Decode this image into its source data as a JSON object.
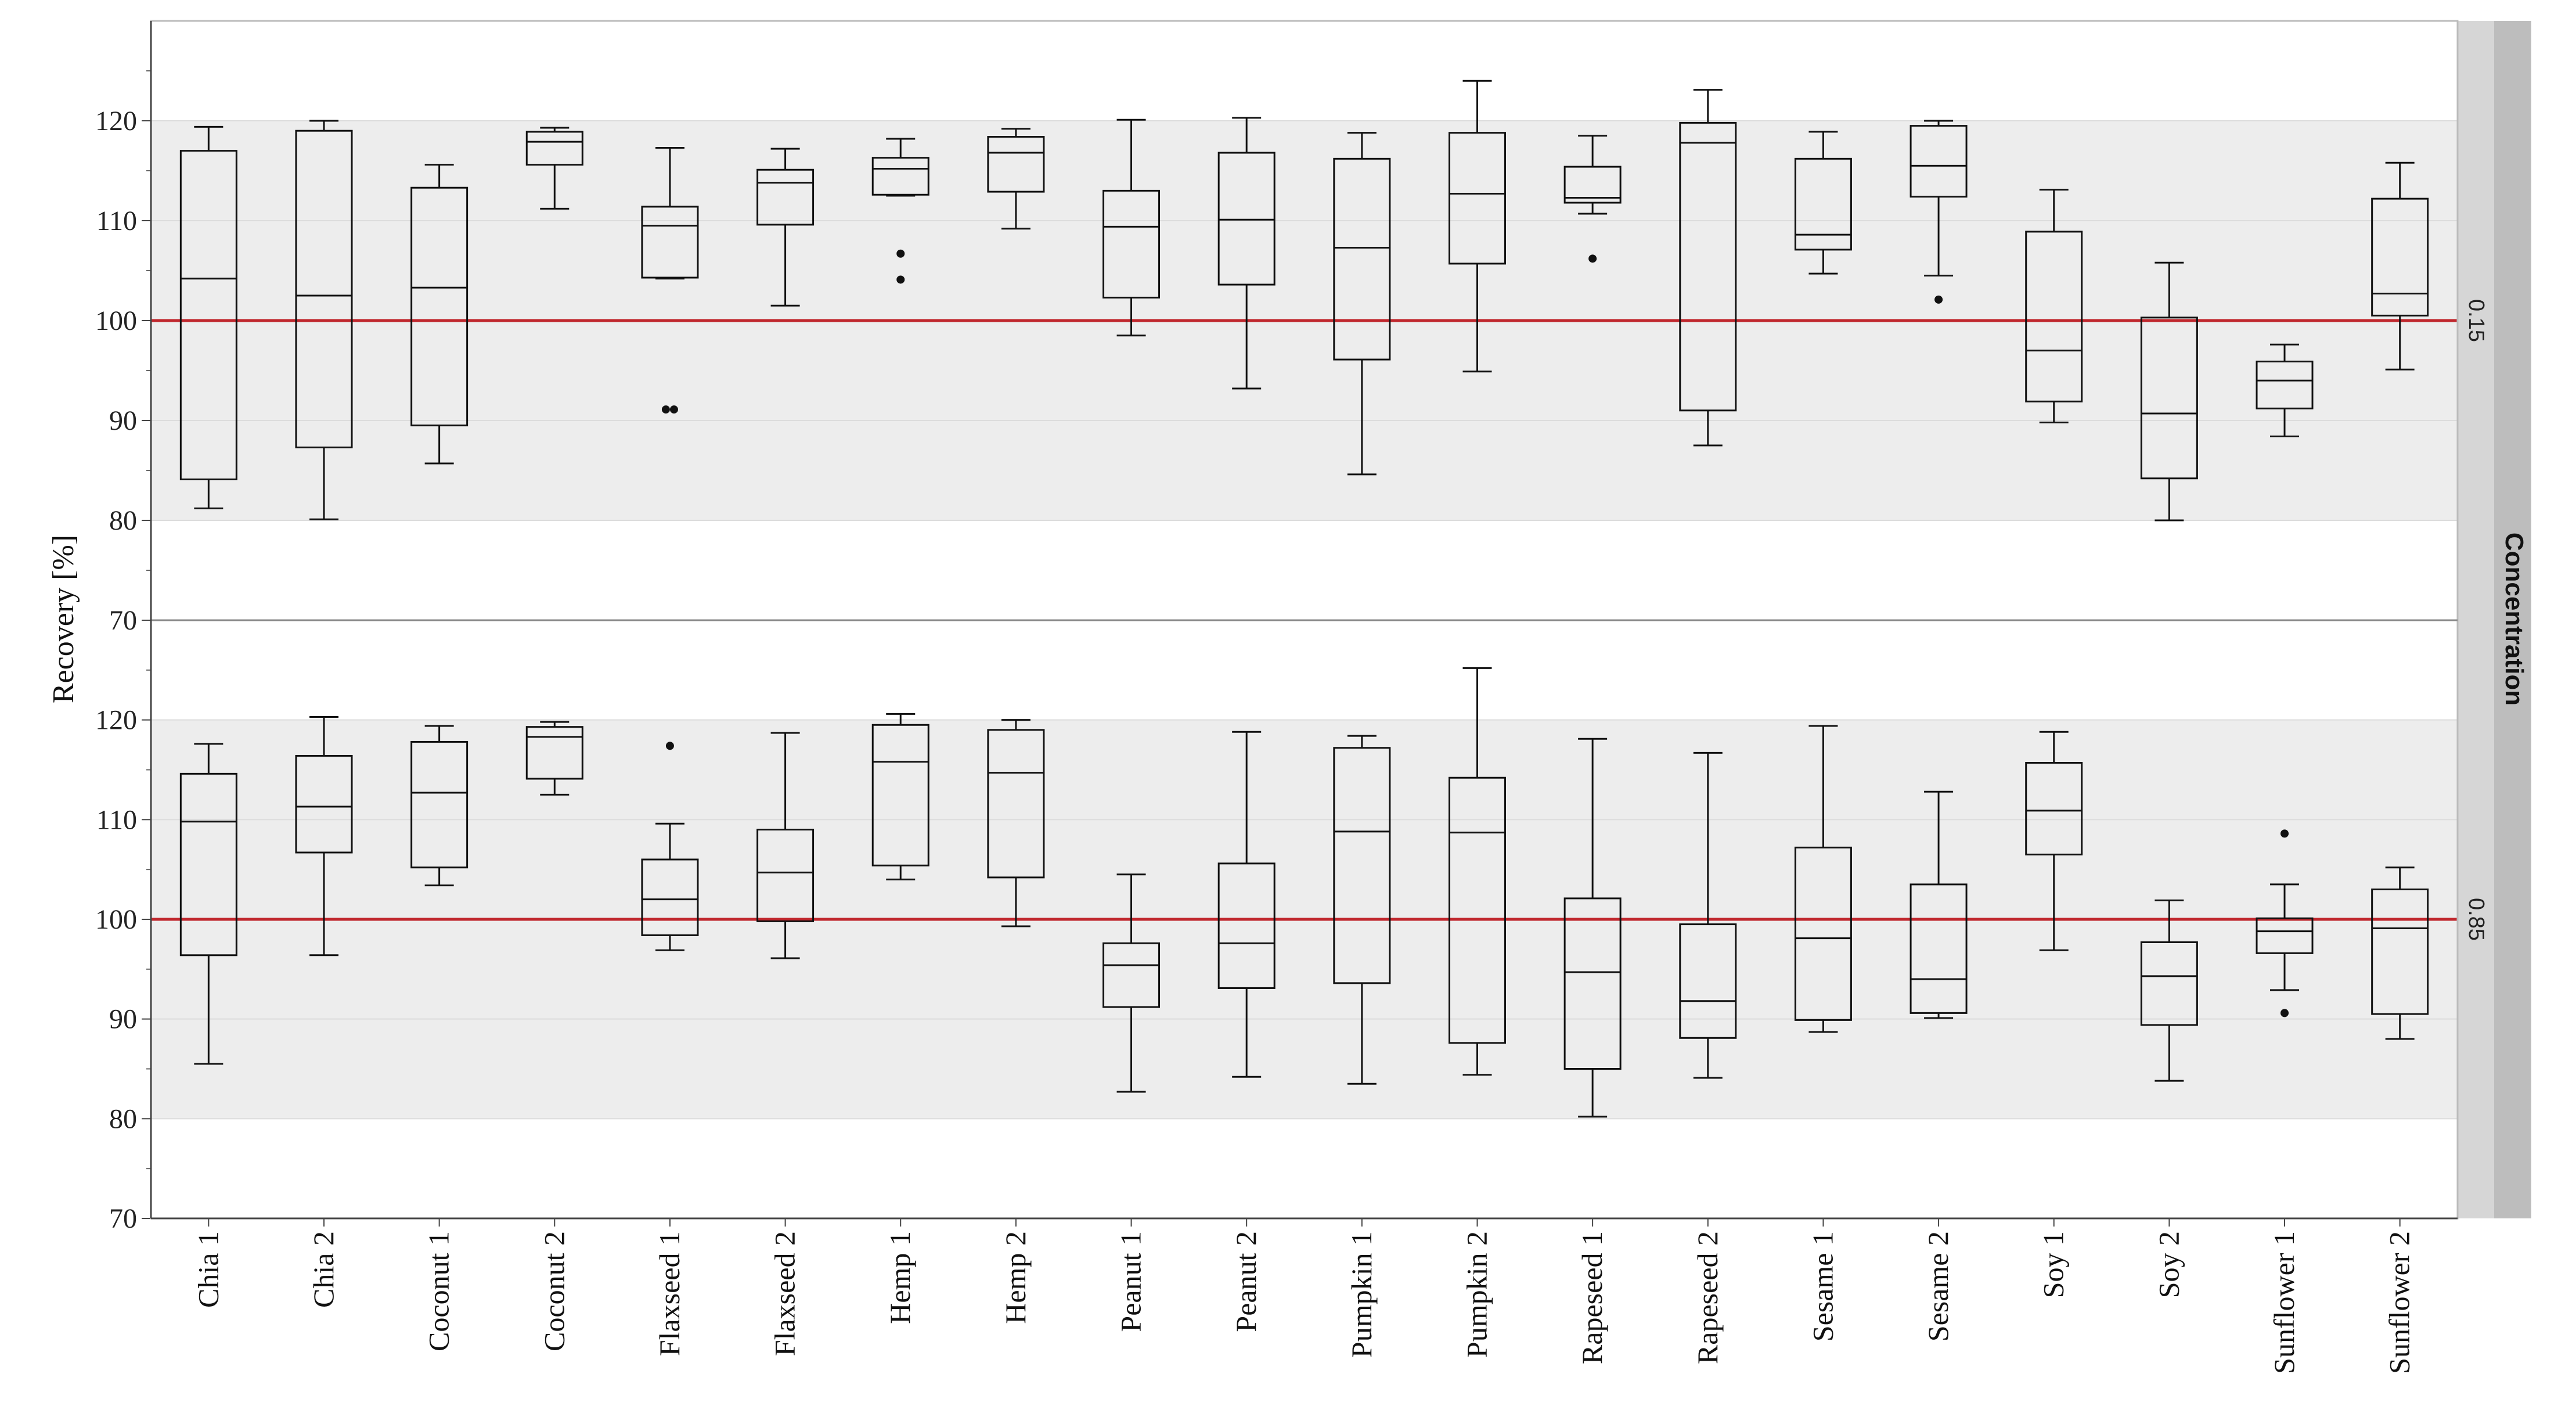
{
  "chart_data": {
    "type": "boxplot",
    "ylabel": "Recovery [%]",
    "xlabel": "",
    "ylim": [
      70,
      130
    ],
    "yticks": [
      70,
      80,
      90,
      100,
      110,
      120
    ],
    "reference_line": 100,
    "reference_color": "#c0272d",
    "acceptance_band": [
      80,
      120
    ],
    "band_color": "#ededed",
    "facet_title": "Concentration",
    "categories": [
      "Chia 1",
      "Chia 2",
      "Coconut 1",
      "Coconut 2",
      "Flaxseed 1",
      "Flaxseed 2",
      "Hemp 1",
      "Hemp 2",
      "Peanut 1",
      "Peanut 2",
      "Pumpkin 1",
      "Pumpkin 2",
      "Rapeseed 1",
      "Rapeseed 2",
      "Sesame 1",
      "Sesame 2",
      "Soy 1",
      "Soy 2",
      "Sunflower 1",
      "Sunflower 2"
    ],
    "panels": [
      {
        "concentration": "0.15",
        "boxes": [
          {
            "min": 81.2,
            "q1": 84.1,
            "median": 104.2,
            "q3": 117.0,
            "max": 119.4,
            "outliers": []
          },
          {
            "min": 80.1,
            "q1": 87.3,
            "median": 102.5,
            "q3": 119.0,
            "max": 120.0,
            "outliers": []
          },
          {
            "min": 85.7,
            "q1": 89.5,
            "median": 103.3,
            "q3": 113.3,
            "max": 115.6,
            "outliers": []
          },
          {
            "min": 111.2,
            "q1": 115.6,
            "median": 117.9,
            "q3": 118.9,
            "max": 119.3,
            "outliers": []
          },
          {
            "min": 104.2,
            "q1": 104.3,
            "median": 109.5,
            "q3": 111.4,
            "max": 117.3,
            "outliers": [
              91.1,
              91.1
            ]
          },
          {
            "min": 101.5,
            "q1": 109.6,
            "median": 113.8,
            "q3": 115.1,
            "max": 117.2,
            "outliers": []
          },
          {
            "min": 112.5,
            "q1": 112.6,
            "median": 115.2,
            "q3": 116.3,
            "max": 118.2,
            "outliers": [
              106.7,
              104.1
            ]
          },
          {
            "min": 109.2,
            "q1": 112.9,
            "median": 116.8,
            "q3": 118.4,
            "max": 119.2,
            "outliers": []
          },
          {
            "min": 98.5,
            "q1": 102.3,
            "median": 109.4,
            "q3": 113.0,
            "max": 120.1,
            "outliers": []
          },
          {
            "min": 93.2,
            "q1": 103.6,
            "median": 110.1,
            "q3": 116.8,
            "max": 120.3,
            "outliers": []
          },
          {
            "min": 84.6,
            "q1": 96.1,
            "median": 107.3,
            "q3": 116.2,
            "max": 118.8,
            "outliers": []
          },
          {
            "min": 94.9,
            "q1": 105.7,
            "median": 112.7,
            "q3": 118.8,
            "max": 124.0,
            "outliers": []
          },
          {
            "min": 110.7,
            "q1": 111.8,
            "median": 112.3,
            "q3": 115.4,
            "max": 118.5,
            "outliers": [
              106.2
            ]
          },
          {
            "min": 87.5,
            "q1": 91.0,
            "median": 117.8,
            "q3": 119.8,
            "max": 123.1,
            "outliers": []
          },
          {
            "min": 104.7,
            "q1": 107.1,
            "median": 108.6,
            "q3": 116.2,
            "max": 118.9,
            "outliers": []
          },
          {
            "min": 104.5,
            "q1": 112.4,
            "median": 115.5,
            "q3": 119.5,
            "max": 120.0,
            "outliers": [
              102.1
            ]
          },
          {
            "min": 89.8,
            "q1": 91.9,
            "median": 97.0,
            "q3": 108.9,
            "max": 113.1,
            "outliers": []
          },
          {
            "min": 80.0,
            "q1": 84.2,
            "median": 90.7,
            "q3": 100.3,
            "max": 105.8,
            "outliers": []
          },
          {
            "min": 88.4,
            "q1": 91.2,
            "median": 94.0,
            "q3": 95.9,
            "max": 97.6,
            "outliers": []
          },
          {
            "min": 95.1,
            "q1": 100.5,
            "median": 102.7,
            "q3": 112.2,
            "max": 115.8,
            "outliers": []
          }
        ]
      },
      {
        "concentration": "0.85",
        "boxes": [
          {
            "min": 85.5,
            "q1": 96.4,
            "median": 109.8,
            "q3": 114.6,
            "max": 117.6,
            "outliers": []
          },
          {
            "min": 96.4,
            "q1": 106.7,
            "median": 111.3,
            "q3": 116.4,
            "max": 120.3,
            "outliers": []
          },
          {
            "min": 103.4,
            "q1": 105.2,
            "median": 112.7,
            "q3": 117.8,
            "max": 119.4,
            "outliers": []
          },
          {
            "min": 112.5,
            "q1": 114.1,
            "median": 118.3,
            "q3": 119.3,
            "max": 119.8,
            "outliers": []
          },
          {
            "min": 96.9,
            "q1": 98.4,
            "median": 102.0,
            "q3": 106.0,
            "max": 109.6,
            "outliers": [
              117.4
            ]
          },
          {
            "min": 96.1,
            "q1": 99.8,
            "median": 104.7,
            "q3": 109.0,
            "max": 118.7,
            "outliers": []
          },
          {
            "min": 104.0,
            "q1": 105.4,
            "median": 115.8,
            "q3": 119.5,
            "max": 120.6,
            "outliers": []
          },
          {
            "min": 99.3,
            "q1": 104.2,
            "median": 114.7,
            "q3": 119.0,
            "max": 120.0,
            "outliers": []
          },
          {
            "min": 82.7,
            "q1": 91.2,
            "median": 95.4,
            "q3": 97.6,
            "max": 104.5,
            "outliers": []
          },
          {
            "min": 84.2,
            "q1": 93.1,
            "median": 97.6,
            "q3": 105.6,
            "max": 118.8,
            "outliers": []
          },
          {
            "min": 83.5,
            "q1": 93.6,
            "median": 108.8,
            "q3": 117.2,
            "max": 118.4,
            "outliers": []
          },
          {
            "min": 84.4,
            "q1": 87.6,
            "median": 108.7,
            "q3": 114.2,
            "max": 125.2,
            "outliers": []
          },
          {
            "min": 80.2,
            "q1": 85.0,
            "median": 94.7,
            "q3": 102.1,
            "max": 118.1,
            "outliers": []
          },
          {
            "min": 84.1,
            "q1": 88.1,
            "median": 91.8,
            "q3": 99.5,
            "max": 116.7,
            "outliers": []
          },
          {
            "min": 88.7,
            "q1": 89.9,
            "median": 98.1,
            "q3": 107.2,
            "max": 119.4,
            "outliers": []
          },
          {
            "min": 90.1,
            "q1": 90.6,
            "median": 94.0,
            "q3": 103.5,
            "max": 112.8,
            "outliers": []
          },
          {
            "min": 96.9,
            "q1": 106.5,
            "median": 110.9,
            "q3": 115.7,
            "max": 118.8,
            "outliers": []
          },
          {
            "min": 83.8,
            "q1": 89.4,
            "median": 94.3,
            "q3": 97.7,
            "max": 101.9,
            "outliers": []
          },
          {
            "min": 92.9,
            "q1": 96.6,
            "median": 98.8,
            "q3": 100.1,
            "max": 103.5,
            "outliers": [
              108.6,
              90.6
            ]
          },
          {
            "min": 88.0,
            "q1": 90.5,
            "median": 99.1,
            "q3": 103.0,
            "max": 105.2,
            "outliers": []
          }
        ]
      }
    ]
  }
}
